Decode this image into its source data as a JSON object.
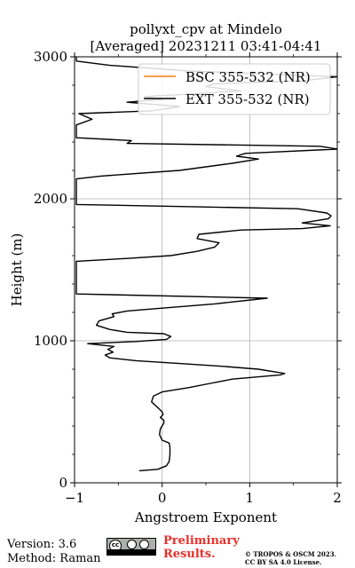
{
  "chart_data": {
    "type": "line",
    "title": "pollyxt_cpv at Mindelo",
    "subtitle": "[Averaged] 20231211 03:41-04:41",
    "xlabel": "Angstroem Exponent",
    "ylabel": "Height (m)",
    "xlim": [
      -1,
      2
    ],
    "ylim": [
      0,
      3000
    ],
    "xticks": [
      -1,
      0,
      1,
      2
    ],
    "yticks": [
      0,
      1000,
      2000,
      3000
    ],
    "xtick_labels": [
      "−1",
      "0",
      "1",
      "2"
    ],
    "ytick_labels": [
      "0",
      "1000",
      "2000",
      "3000"
    ],
    "grid": true,
    "legend_position": "top-right",
    "series": [
      {
        "name": "BSC 355-532 (NR)",
        "color": "#ff7f0e",
        "points": []
      },
      {
        "name": "EXT 355-532 (NR)",
        "color": "#000000",
        "points": [
          [
            -0.26,
            85
          ],
          [
            -0.05,
            95
          ],
          [
            0.05,
            120
          ],
          [
            0.08,
            150
          ],
          [
            0.09,
            200
          ],
          [
            0.09,
            250
          ],
          [
            0.08,
            280
          ],
          [
            0.0,
            300
          ],
          [
            -0.03,
            340
          ],
          [
            -0.02,
            380
          ],
          [
            0.02,
            420
          ],
          [
            0.02,
            440
          ],
          [
            -0.02,
            460
          ],
          [
            0.01,
            480
          ],
          [
            0.0,
            500
          ],
          [
            -0.05,
            530
          ],
          [
            -0.12,
            570
          ],
          [
            -0.1,
            610
          ],
          [
            0.0,
            640
          ],
          [
            0.3,
            670
          ],
          [
            0.55,
            700
          ],
          [
            0.8,
            730
          ],
          [
            1.35,
            760
          ],
          [
            1.4,
            770
          ],
          [
            1.3,
            780
          ],
          [
            1.1,
            800
          ],
          [
            0.7,
            820
          ],
          [
            0.2,
            840
          ],
          [
            -0.3,
            860
          ],
          [
            -0.6,
            880
          ],
          [
            -0.65,
            900
          ],
          [
            -0.56,
            920
          ],
          [
            -0.62,
            940
          ],
          [
            -0.55,
            960
          ],
          [
            -0.85,
            980
          ],
          [
            -0.3,
            995
          ],
          [
            0.05,
            1010
          ],
          [
            0.1,
            1030
          ],
          [
            0.02,
            1050
          ],
          [
            -0.4,
            1060
          ],
          [
            -0.6,
            1080
          ],
          [
            -0.75,
            1110
          ],
          [
            -0.72,
            1140
          ],
          [
            -0.55,
            1170
          ],
          [
            -0.57,
            1190
          ],
          [
            -0.4,
            1210
          ],
          [
            0.0,
            1230
          ],
          [
            0.6,
            1260
          ],
          [
            1.2,
            1300
          ],
          [
            -0.98,
            1330
          ],
          [
            -0.98,
            1560
          ],
          [
            -0.4,
            1580
          ],
          [
            0.1,
            1600
          ],
          [
            0.4,
            1630
          ],
          [
            0.6,
            1660
          ],
          [
            0.65,
            1690
          ],
          [
            0.4,
            1720
          ],
          [
            0.42,
            1750
          ],
          [
            0.9,
            1780
          ],
          [
            1.6,
            1790
          ],
          [
            1.92,
            1810
          ],
          [
            1.6,
            1830
          ],
          [
            1.9,
            1860
          ],
          [
            1.93,
            1880
          ],
          [
            1.88,
            1900
          ],
          [
            1.55,
            1930
          ],
          [
            -0.98,
            1960
          ],
          [
            -0.98,
            2140
          ],
          [
            -0.7,
            2160
          ],
          [
            0.2,
            2200
          ],
          [
            0.8,
            2250
          ],
          [
            1.1,
            2280
          ],
          [
            0.85,
            2300
          ],
          [
            0.95,
            2320
          ],
          [
            2.0,
            2350
          ],
          [
            1.8,
            2370
          ],
          [
            -0.4,
            2390
          ],
          [
            -0.35,
            2410
          ],
          [
            -0.98,
            2430
          ],
          [
            -0.98,
            2520
          ],
          [
            -0.8,
            2560
          ],
          [
            -0.95,
            2600
          ],
          [
            -0.1,
            2620
          ],
          [
            0.2,
            2650
          ],
          [
            -0.4,
            2680
          ],
          [
            0.0,
            2700
          ],
          [
            -0.2,
            2720
          ],
          [
            0.4,
            2740
          ],
          [
            0.9,
            2760
          ],
          [
            0.5,
            2790
          ],
          [
            0.6,
            2810
          ],
          [
            1.6,
            2830
          ],
          [
            2.0,
            2860
          ],
          [
            0.3,
            2900
          ],
          [
            -0.6,
            2940
          ],
          [
            -0.98,
            2970
          ],
          [
            -0.98,
            3000
          ]
        ]
      }
    ]
  },
  "footer": {
    "version": "Version: 3.6",
    "method": "Method: Raman",
    "preliminary_line1": "Preliminary",
    "preliminary_line2": "Results.",
    "copyright_line1": "© TROPOS & OSCM 2023.",
    "copyright_line2": "CC BY SA 4.0 License."
  },
  "badge": {
    "icon": "cc-by-sa-icon"
  }
}
